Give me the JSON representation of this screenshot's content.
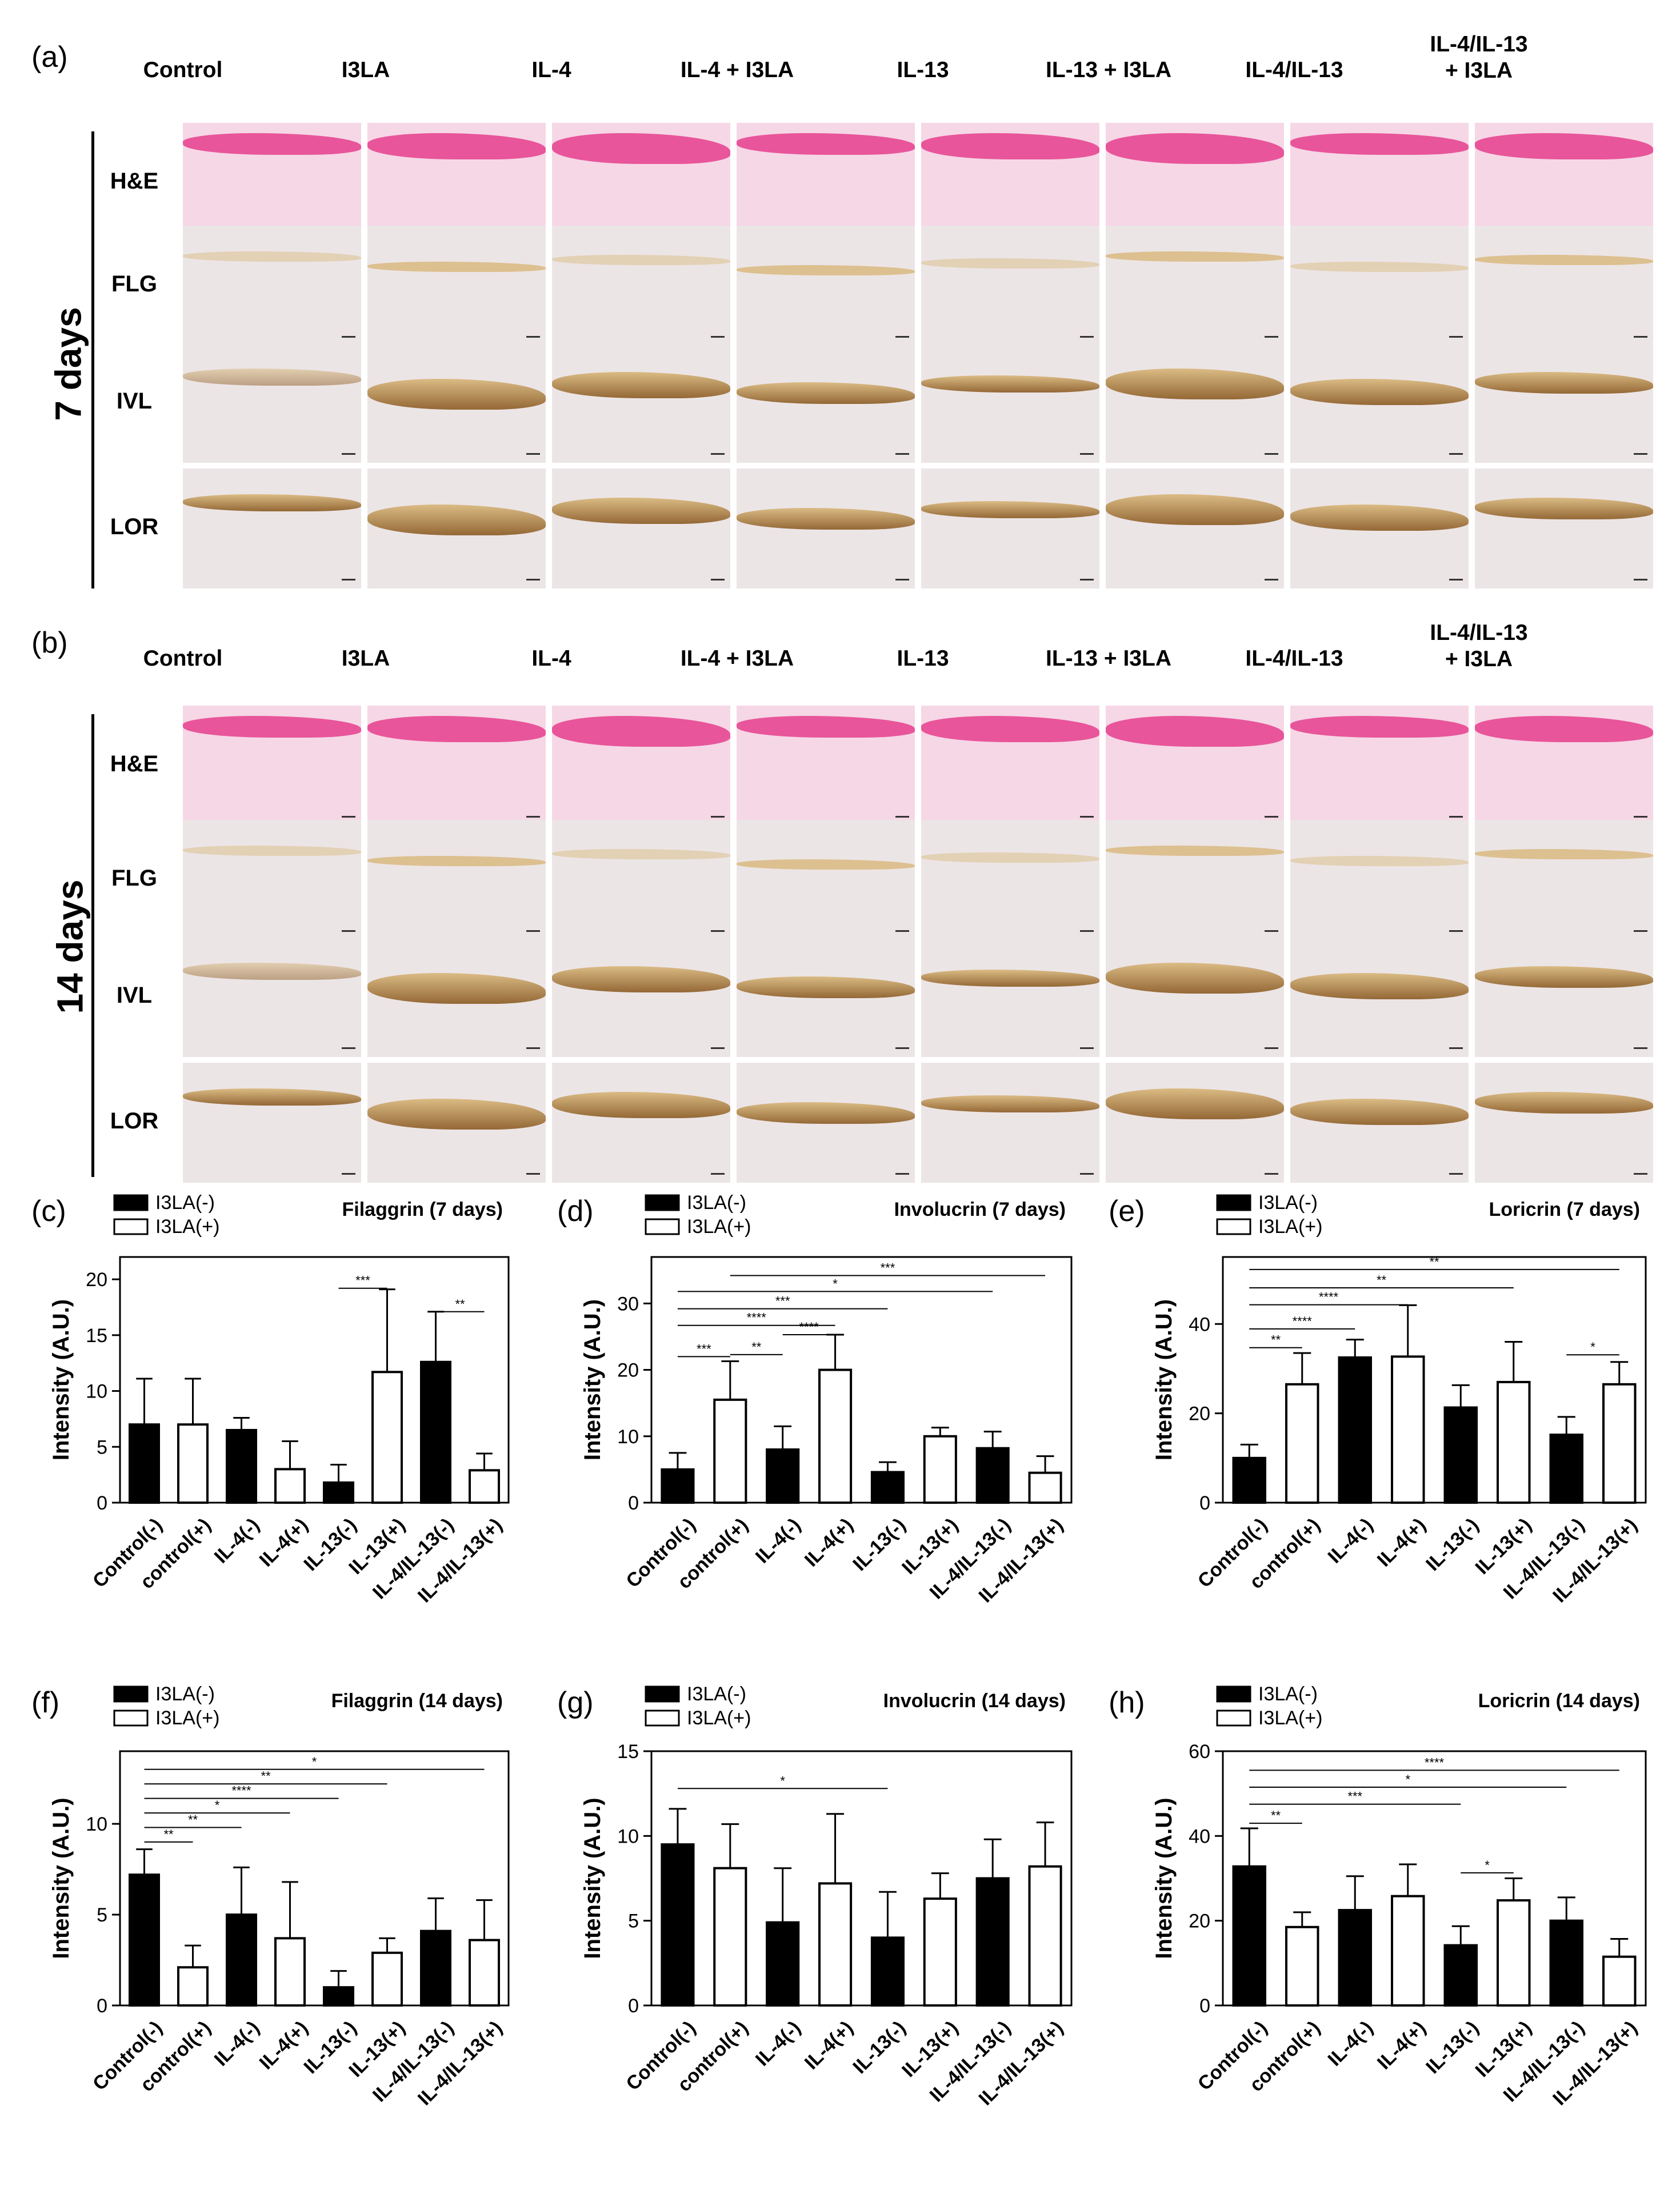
{
  "panels": {
    "a": "(a)",
    "b": "(b)",
    "c": "(c)",
    "d": "(d)",
    "e": "(e)",
    "f": "(f)",
    "g": "(g)",
    "h": "(h)"
  },
  "columns": [
    "Control",
    "I3LA",
    "IL-4",
    "IL-4 + I3LA",
    "IL-13",
    "IL-13 + I3LA",
    "IL-4/IL-13",
    "IL-4/IL-13\n+ I3LA"
  ],
  "rows": [
    "H&E",
    "FLG",
    "IVL",
    "LOR"
  ],
  "day_labels": {
    "a": "7 days",
    "b": "14 days"
  },
  "colors": {
    "he_bg": "#f6d7e6",
    "he_epi": "#e8559a",
    "ihc_bg": "#ece5e6",
    "ihc_dark": "#8a5a22",
    "ihc_light": "#d9b77a",
    "bar_filled": "#000000",
    "bar_open": "#ffffff"
  },
  "chart_data": [
    {
      "id": "c",
      "type": "bar",
      "title": "Filaggrin (7 days)",
      "ylabel": "Intensity (A.U.)",
      "legend": [
        "I3LA(-)",
        "I3LA(+)"
      ],
      "categories": [
        "Control(-)",
        "control(+)",
        "IL-4(-)",
        "IL-4(+)",
        "IL-13(-)",
        "IL-13(+)",
        "IL-4/IL-13(-)",
        "IL-4/IL-13(+)"
      ],
      "values": [
        7.0,
        7.0,
        6.5,
        3.0,
        1.8,
        11.7,
        12.6,
        2.9
      ],
      "errors": [
        4.1,
        4.1,
        1.1,
        2.5,
        1.6,
        7.4,
        4.5,
        1.5
      ],
      "filled": [
        true,
        false,
        true,
        false,
        true,
        false,
        true,
        false
      ],
      "ylim": [
        0,
        22
      ],
      "yticks": [
        0,
        5,
        10,
        15,
        20
      ],
      "sig": [
        {
          "from": 4,
          "to": 5,
          "label": "***",
          "y": 19.2
        },
        {
          "from": 6,
          "to": 7,
          "label": "**",
          "y": 17.1
        }
      ]
    },
    {
      "id": "d",
      "type": "bar",
      "title": "Involucrin (7 days)",
      "ylabel": "Intensity (A.U.)",
      "legend": [
        "I3LA(-)",
        "I3LA(+)"
      ],
      "categories": [
        "Control(-)",
        "control(+)",
        "IL-4(-)",
        "IL-4(+)",
        "IL-13(-)",
        "IL-13(+)",
        "IL-4/IL-13(-)",
        "IL-4/IL-13(+)"
      ],
      "values": [
        5.0,
        15.5,
        8.0,
        20.0,
        4.6,
        10.0,
        8.2,
        4.5
      ],
      "errors": [
        2.5,
        5.8,
        3.5,
        5.3,
        1.5,
        1.3,
        2.5,
        2.5
      ],
      "filled": [
        true,
        false,
        true,
        false,
        true,
        false,
        true,
        false
      ],
      "ylim": [
        0,
        37
      ],
      "yticks": [
        0,
        10,
        20,
        30
      ],
      "sig": [
        {
          "from": 0,
          "to": 1,
          "label": "***",
          "y": 22.0
        },
        {
          "from": 1,
          "to": 2,
          "label": "**",
          "y": 22.3
        },
        {
          "from": 2,
          "to": 3,
          "label": "****",
          "y": 25.3
        },
        {
          "from": 0,
          "to": 3,
          "label": "****",
          "y": 26.7
        },
        {
          "from": 0,
          "to": 4,
          "label": "***",
          "y": 29.2
        },
        {
          "from": 0,
          "to": 6,
          "label": "*",
          "y": 31.8
        },
        {
          "from": 1,
          "to": 7,
          "label": "***",
          "y": 34.2
        }
      ]
    },
    {
      "id": "e",
      "type": "bar",
      "title": "Loricrin (7 days)",
      "ylabel": "Intensity (A.U.)",
      "legend": [
        "I3LA(-)",
        "I3LA(+)"
      ],
      "categories": [
        "Control(-)",
        "control(+)",
        "IL-4(-)",
        "IL-4(+)",
        "IL-13(-)",
        "IL-13(+)",
        "IL-4/IL-13(-)",
        "IL-4/IL-13(+)"
      ],
      "values": [
        10.0,
        26.5,
        32.5,
        32.7,
        21.3,
        27.0,
        15.2,
        26.5
      ],
      "errors": [
        3.0,
        7.0,
        4.0,
        11.5,
        5.0,
        9.0,
        4.0,
        5.0
      ],
      "filled": [
        true,
        false,
        true,
        false,
        true,
        false,
        true,
        false
      ],
      "ylim": [
        0,
        55
      ],
      "yticks": [
        0,
        20,
        40
      ],
      "sig": [
        {
          "from": 0,
          "to": 1,
          "label": "**",
          "y": 34.7
        },
        {
          "from": 0,
          "to": 2,
          "label": "****",
          "y": 38.9
        },
        {
          "from": 0,
          "to": 3,
          "label": "****",
          "y": 44.3
        },
        {
          "from": 0,
          "to": 5,
          "label": "**",
          "y": 48.1
        },
        {
          "from": 0,
          "to": 7,
          "label": "**",
          "y": 52.2
        },
        {
          "from": 6,
          "to": 7,
          "label": "*",
          "y": 33.1
        }
      ]
    },
    {
      "id": "f",
      "type": "bar",
      "title": "Filaggrin (14 days)",
      "ylabel": "Intensity (A.U.)",
      "legend": [
        "I3LA(-)",
        "I3LA(+)"
      ],
      "categories": [
        "Control(-)",
        "control(+)",
        "IL-4(-)",
        "IL-4(+)",
        "IL-13(-)",
        "IL-13(+)",
        "IL-4/IL-13(-)",
        "IL-4/IL-13(+)"
      ],
      "values": [
        7.2,
        2.1,
        5.0,
        3.7,
        1.0,
        2.9,
        4.1,
        3.6
      ],
      "errors": [
        1.4,
        1.2,
        2.6,
        3.1,
        0.9,
        0.8,
        1.8,
        2.2
      ],
      "filled": [
        true,
        false,
        true,
        false,
        true,
        false,
        true,
        false
      ],
      "ylim": [
        0,
        14
      ],
      "yticks": [
        0,
        5,
        10
      ],
      "sig": [
        {
          "from": 0,
          "to": 1,
          "label": "**",
          "y": 9.0
        },
        {
          "from": 0,
          "to": 2,
          "label": "**",
          "y": 9.8
        },
        {
          "from": 0,
          "to": 3,
          "label": "*",
          "y": 10.6
        },
        {
          "from": 0,
          "to": 4,
          "label": "****",
          "y": 11.4
        },
        {
          "from": 0,
          "to": 5,
          "label": "**",
          "y": 12.2
        },
        {
          "from": 0,
          "to": 7,
          "label": "*",
          "y": 13.0
        }
      ]
    },
    {
      "id": "g",
      "type": "bar",
      "title": "Involucrin (14 days)",
      "ylabel": "Intensity (A.U.)",
      "legend": [
        "I3LA(-)",
        "I3LA(+)"
      ],
      "categories": [
        "Control(-)",
        "control(+)",
        "IL-4(-)",
        "IL-4(+)",
        "IL-13(-)",
        "IL-13(+)",
        "IL-4/IL-13(-)",
        "IL-4/IL-13(+)"
      ],
      "values": [
        9.5,
        8.1,
        4.9,
        7.2,
        4.0,
        6.3,
        7.5,
        8.2
      ],
      "errors": [
        2.1,
        2.6,
        3.2,
        4.1,
        2.7,
        1.5,
        2.3,
        2.6
      ],
      "filled": [
        true,
        false,
        true,
        false,
        true,
        false,
        true,
        false
      ],
      "ylim": [
        0,
        15
      ],
      "yticks": [
        0,
        5,
        10,
        15
      ],
      "sig": [
        {
          "from": 0,
          "to": 4,
          "label": "*",
          "y": 12.8
        }
      ]
    },
    {
      "id": "h",
      "type": "bar",
      "title": "Loricrin (14 days)",
      "ylabel": "Intensity (A.U.)",
      "legend": [
        "I3LA(-)",
        "I3LA(+)"
      ],
      "categories": [
        "Control(-)",
        "control(+)",
        "IL-4(-)",
        "IL-4(+)",
        "IL-13(-)",
        "IL-13(+)",
        "IL-4/IL-13(-)",
        "IL-4/IL-13(+)"
      ],
      "values": [
        32.8,
        18.5,
        22.5,
        25.8,
        14.2,
        24.8,
        20.0,
        11.5
      ],
      "errors": [
        9.0,
        3.5,
        8.0,
        7.5,
        4.5,
        5.2,
        5.5,
        4.2
      ],
      "filled": [
        true,
        false,
        true,
        false,
        true,
        false,
        true,
        false
      ],
      "ylim": [
        0,
        60
      ],
      "yticks": [
        0,
        20,
        40,
        60
      ],
      "sig": [
        {
          "from": 0,
          "to": 1,
          "label": "**",
          "y": 43.0
        },
        {
          "from": 0,
          "to": 4,
          "label": "***",
          "y": 47.5
        },
        {
          "from": 0,
          "to": 6,
          "label": "*",
          "y": 51.5
        },
        {
          "from": 0,
          "to": 7,
          "label": "****",
          "y": 55.5
        },
        {
          "from": 4,
          "to": 5,
          "label": "*",
          "y": 31.3
        }
      ]
    }
  ]
}
